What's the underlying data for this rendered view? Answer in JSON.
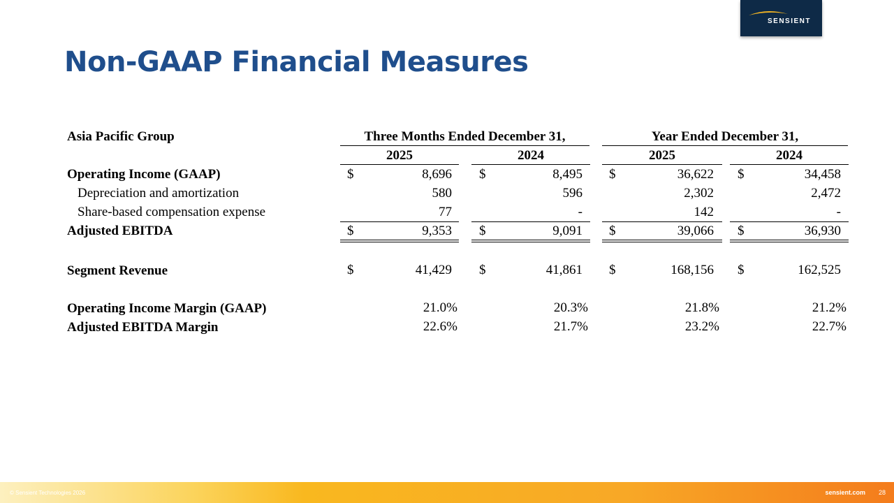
{
  "logo": {
    "brand": "SENSIENT",
    "colors": {
      "background": "#0e2a47",
      "swoosh": "#f0b323"
    }
  },
  "title": "Non-GAAP Financial Measures",
  "table": {
    "group_label": "Asia Pacific Group",
    "period_headers": [
      "Three Months Ended December 31,",
      "Year Ended December 31,"
    ],
    "year_headers": [
      "2025",
      "2024",
      "2025",
      "2024"
    ],
    "currency_symbol": "$",
    "rows": [
      {
        "label": "Operating Income (GAAP)",
        "values": [
          "8,696",
          "8,495",
          "36,622",
          "34,458"
        ]
      },
      {
        "label": "Depreciation and amortization",
        "values": [
          "580",
          "596",
          "2,302",
          "2,472"
        ]
      },
      {
        "label": "Share-based compensation expense",
        "values": [
          "77",
          "-",
          "142",
          "-"
        ]
      },
      {
        "label": "Adjusted EBITDA",
        "values": [
          "9,353",
          "9,091",
          "39,066",
          "36,930"
        ]
      },
      {
        "label": "Segment Revenue",
        "values": [
          "41,429",
          "41,861",
          "168,156",
          "162,525"
        ]
      },
      {
        "label": "Operating Income Margin (GAAP)",
        "values": [
          "21.0%",
          "20.3%",
          "21.8%",
          "21.2%"
        ]
      },
      {
        "label": "Adjusted EBITDA Margin",
        "values": [
          "22.6%",
          "21.7%",
          "23.2%",
          "22.7%"
        ]
      }
    ]
  },
  "footer": {
    "copyright": "© Sensient Technologies 2026",
    "website": "sensient.com",
    "page_number": "28"
  },
  "colors": {
    "title": "#1f4e8c",
    "footer_start": "#fdf0bf",
    "footer_end": "#f47c1c"
  }
}
